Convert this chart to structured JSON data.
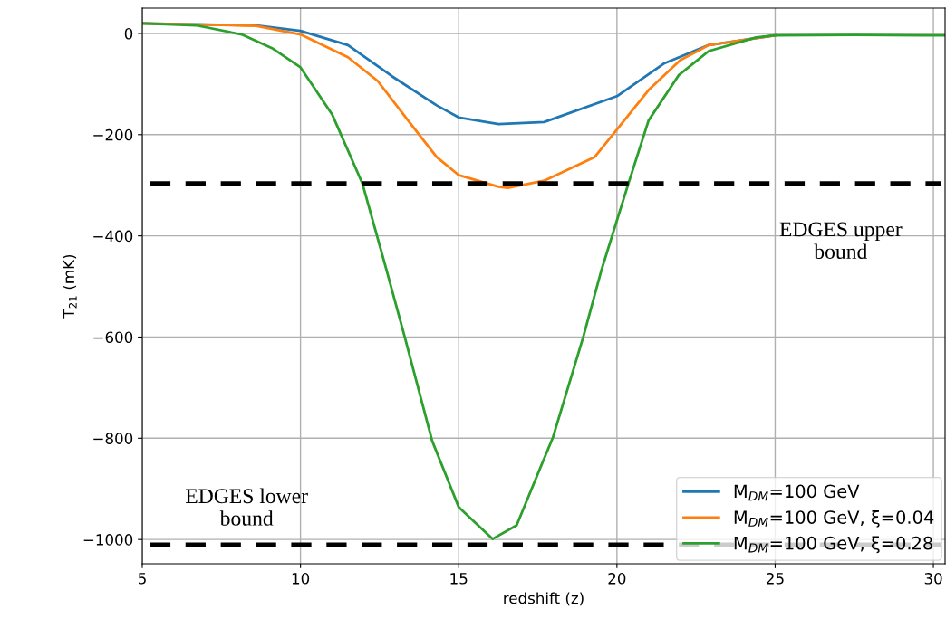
{
  "chart_data": {
    "type": "line",
    "xlabel": "redshift (z)",
    "ylabel": "T$_{21}$ (mK)",
    "xlim": [
      5,
      30.37
    ],
    "ylim": [
      -1048,
      50
    ],
    "xticks": [
      5,
      10,
      15,
      20,
      25,
      30
    ],
    "yticks": [
      {
        "value": 0,
        "label": "0"
      },
      {
        "value": -200,
        "label": "−200"
      },
      {
        "value": -400,
        "label": "−400"
      },
      {
        "value": -600,
        "label": "−600"
      },
      {
        "value": -800,
        "label": "−800"
      },
      {
        "value": -1000,
        "label": "−1000"
      }
    ],
    "grid": true,
    "legend": "bottom right",
    "marker": "none",
    "line_style": "solid",
    "series": [
      {
        "name": "M$_{DM}$=100 GeV",
        "color": "#1f77b4",
        "x": [
          5,
          8.6,
          10,
          11.5,
          12.9,
          14.3,
          15,
          16.26,
          17.7,
          20,
          21.5,
          22.9,
          25
        ],
        "values": [
          20,
          16,
          5,
          -23,
          -85,
          -142,
          -166,
          -179,
          -175,
          -124,
          -59,
          -23,
          -4
        ]
      },
      {
        "name": "M$_{DM}$=100 GeV, ξ=0.04",
        "color": "#ff7f0e",
        "x": [
          5,
          8.6,
          10,
          11.5,
          12.44,
          13.4,
          14.3,
          15,
          16.26,
          16.55,
          17.7,
          19.3,
          20,
          21.0,
          22,
          22.9,
          25
        ],
        "values": [
          20,
          15,
          -2,
          -47,
          -94,
          -172,
          -244,
          -280,
          -303,
          -305,
          -291,
          -244,
          -190,
          -112,
          -53,
          -23,
          -4
        ]
      },
      {
        "name": "M$_{DM}$=100 GeV, ξ=0.28",
        "color": "#2ca02c",
        "x": [
          5,
          6.7,
          8.14,
          9.1,
          10,
          11.0,
          11.96,
          12.73,
          13.3,
          14.16,
          15,
          16.07,
          16.83,
          17.7,
          17.98,
          18.93,
          19.5,
          20.36,
          21.0,
          21.96,
          22.9,
          24.4,
          25,
          27.5,
          30.37
        ],
        "values": [
          20,
          16,
          -2,
          -29,
          -67,
          -160,
          -297,
          -470,
          -601,
          -805,
          -936,
          -999,
          -972,
          -840,
          -798,
          -601,
          -470,
          -297,
          -172,
          -82,
          -35,
          -8,
          -4,
          -3,
          -4
        ]
      }
    ],
    "ref_lines": [
      {
        "axis": "y",
        "value": -297,
        "label": "EDGES upper\nbound",
        "color": "#000000",
        "line_style": "dashed"
      },
      {
        "axis": "y",
        "value": -1011,
        "label": "EDGES lower\nbound",
        "color": "#000000",
        "line_style": "dashed"
      }
    ]
  }
}
